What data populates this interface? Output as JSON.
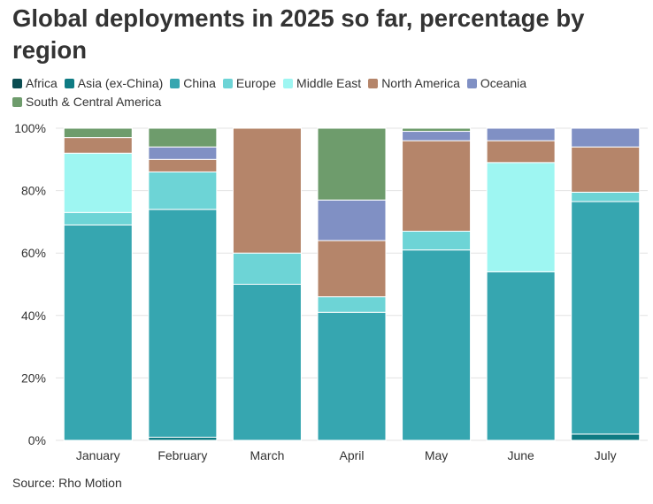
{
  "title": "Global deployments in 2025 so far, percentage by region",
  "source": "Source: Rho Motion",
  "chart_data": {
    "type": "bar",
    "stacked": true,
    "title": "Global deployments in 2025 so far, percentage by region",
    "xlabel": "",
    "ylabel": "",
    "ylim": [
      0,
      100
    ],
    "y_ticks": [
      "0%",
      "20%",
      "40%",
      "60%",
      "80%",
      "100%"
    ],
    "grid": true,
    "legend_position": "top",
    "categories": [
      "January",
      "February",
      "March",
      "April",
      "May",
      "June",
      "July"
    ],
    "series": [
      {
        "name": "Africa",
        "color": "#0b4d52",
        "values": [
          0,
          0,
          0,
          0,
          0,
          0,
          0
        ]
      },
      {
        "name": "Asia (ex-China)",
        "color": "#0e7b83",
        "values": [
          0,
          1,
          0,
          0,
          0,
          0,
          2
        ]
      },
      {
        "name": "China",
        "color": "#36a6b0",
        "values": [
          69,
          73,
          50,
          41,
          61,
          54,
          74.5
        ]
      },
      {
        "name": "Europe",
        "color": "#6dd4d6",
        "values": [
          4,
          12,
          10,
          5,
          6,
          0,
          3
        ]
      },
      {
        "name": "Middle East",
        "color": "#9ef6f2",
        "values": [
          19,
          0,
          0,
          0,
          0,
          35,
          0
        ]
      },
      {
        "name": "North America",
        "color": "#b5856a",
        "values": [
          5,
          4,
          40,
          18,
          29,
          7,
          14.5
        ]
      },
      {
        "name": "Oceania",
        "color": "#8090c4",
        "values": [
          0,
          4,
          0,
          13,
          3,
          4,
          6
        ]
      },
      {
        "name": "South & Central America",
        "color": "#6e9c6c",
        "values": [
          3,
          6,
          0,
          23,
          1,
          0,
          0
        ]
      }
    ]
  }
}
